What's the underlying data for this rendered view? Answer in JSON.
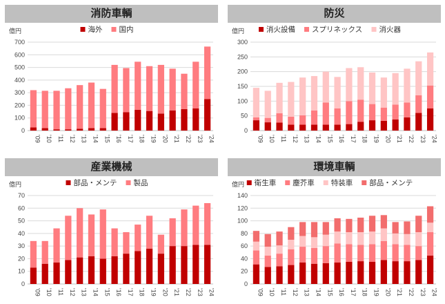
{
  "colors": {
    "dark": "#c00000",
    "mid": "#ff7c80",
    "light": "#ffc5c5",
    "title_bg": "#bfbfbf"
  },
  "chart_data": [
    {
      "id": "c1",
      "type": "bar",
      "stacked": true,
      "title": "消防車輌",
      "ylabel": "億円",
      "ylim": [
        0,
        700
      ],
      "yticks": [
        0,
        100,
        200,
        300,
        400,
        500,
        600,
        700
      ],
      "categories": [
        "'09",
        "'10",
        "'11",
        "'12",
        "'13",
        "'14",
        "'15",
        "'16",
        "'17",
        "'18",
        "'19",
        "'20",
        "'21",
        "'22",
        "'23",
        "'24"
      ],
      "series": [
        {
          "name": "海外",
          "color": "#c00000",
          "values": [
            25,
            20,
            10,
            10,
            15,
            20,
            20,
            140,
            145,
            165,
            155,
            135,
            160,
            170,
            175,
            250
          ]
        },
        {
          "name": "国内",
          "color": "#ff7c80",
          "values": [
            295,
            295,
            305,
            325,
            345,
            360,
            310,
            380,
            350,
            380,
            355,
            385,
            330,
            280,
            370,
            415
          ]
        }
      ],
      "legend": "top"
    },
    {
      "id": "c2",
      "type": "bar",
      "stacked": true,
      "title": "防災",
      "ylabel": "億円",
      "ylim": [
        0,
        300
      ],
      "yticks": [
        0,
        50,
        100,
        150,
        200,
        250,
        300
      ],
      "categories": [
        "'09",
        "'10",
        "'11",
        "'12",
        "'13",
        "'14",
        "'15",
        "'16",
        "'17",
        "'18",
        "'19",
        "'20",
        "'21",
        "'22",
        "'23",
        "'24"
      ],
      "series": [
        {
          "name": "消火設備",
          "color": "#c00000",
          "values": [
            35,
            28,
            27,
            20,
            20,
            20,
            20,
            20,
            22,
            30,
            35,
            33,
            38,
            45,
            60,
            75
          ]
        },
        {
          "name": "スプリネックス",
          "color": "#ff7c80",
          "values": [
            10,
            15,
            32,
            27,
            32,
            48,
            75,
            55,
            78,
            75,
            55,
            45,
            50,
            50,
            60,
            78
          ]
        },
        {
          "name": "消火器",
          "color": "#ffc5c5",
          "values": [
            100,
            92,
            103,
            118,
            128,
            117,
            105,
            107,
            112,
            110,
            107,
            102,
            107,
            115,
            115,
            112
          ]
        }
      ],
      "legend": "top"
    },
    {
      "id": "c3",
      "type": "bar",
      "stacked": true,
      "title": "産業機械",
      "ylabel": "億円",
      "ylim": [
        0,
        70
      ],
      "yticks": [
        0,
        10,
        20,
        30,
        40,
        50,
        60,
        70
      ],
      "categories": [
        "'09",
        "'10",
        "'11",
        "'12",
        "'13",
        "'14",
        "'15",
        "'16",
        "'17",
        "'18",
        "'19",
        "'20",
        "'21",
        "'22",
        "'23",
        "'24"
      ],
      "series": [
        {
          "name": "部品・メンテ",
          "color": "#c00000",
          "values": [
            13,
            16,
            17,
            19,
            21,
            22,
            20,
            22,
            24,
            26,
            28,
            24,
            30,
            30,
            31,
            31
          ]
        },
        {
          "name": "製品",
          "color": "#ff7c80",
          "values": [
            21,
            18,
            27,
            35,
            39,
            33,
            39,
            22,
            17,
            21,
            26,
            15,
            22,
            29,
            31,
            33
          ]
        }
      ],
      "legend": "top"
    },
    {
      "id": "c4",
      "type": "bar",
      "stacked": true,
      "title": "環境車輌",
      "ylabel": "億円",
      "ylim": [
        0,
        140
      ],
      "yticks": [
        0,
        20,
        40,
        60,
        80,
        100,
        120,
        140
      ],
      "categories": [
        "'09",
        "'10",
        "'11",
        "'12",
        "'13",
        "'14",
        "'15",
        "'16",
        "'17",
        "'18",
        "'19",
        "'20",
        "'21",
        "'22",
        "'23",
        "'24"
      ],
      "series": [
        {
          "name": "衛生車",
          "color": "#c00000",
          "values": [
            31,
            27,
            28,
            30,
            34,
            32,
            33,
            34,
            35,
            36,
            35,
            38,
            36,
            36,
            38,
            45
          ]
        },
        {
          "name": "塵芥車",
          "color": "#ff7c80",
          "values": [
            22,
            18,
            20,
            25,
            25,
            25,
            27,
            30,
            28,
            26,
            28,
            30,
            27,
            26,
            22,
            37
          ]
        },
        {
          "name": "特装車",
          "color": "#ffc5c5",
          "values": [
            14,
            14,
            13,
            15,
            17,
            17,
            18,
            19,
            19,
            20,
            20,
            20,
            17,
            17,
            22,
            15
          ]
        },
        {
          "name": "部品・メンテ",
          "color": "#f26d6d",
          "values": [
            17,
            20,
            22,
            20,
            22,
            24,
            20,
            21,
            21,
            23,
            25,
            21,
            18,
            20,
            26,
            26
          ]
        }
      ],
      "legend": "top"
    }
  ]
}
